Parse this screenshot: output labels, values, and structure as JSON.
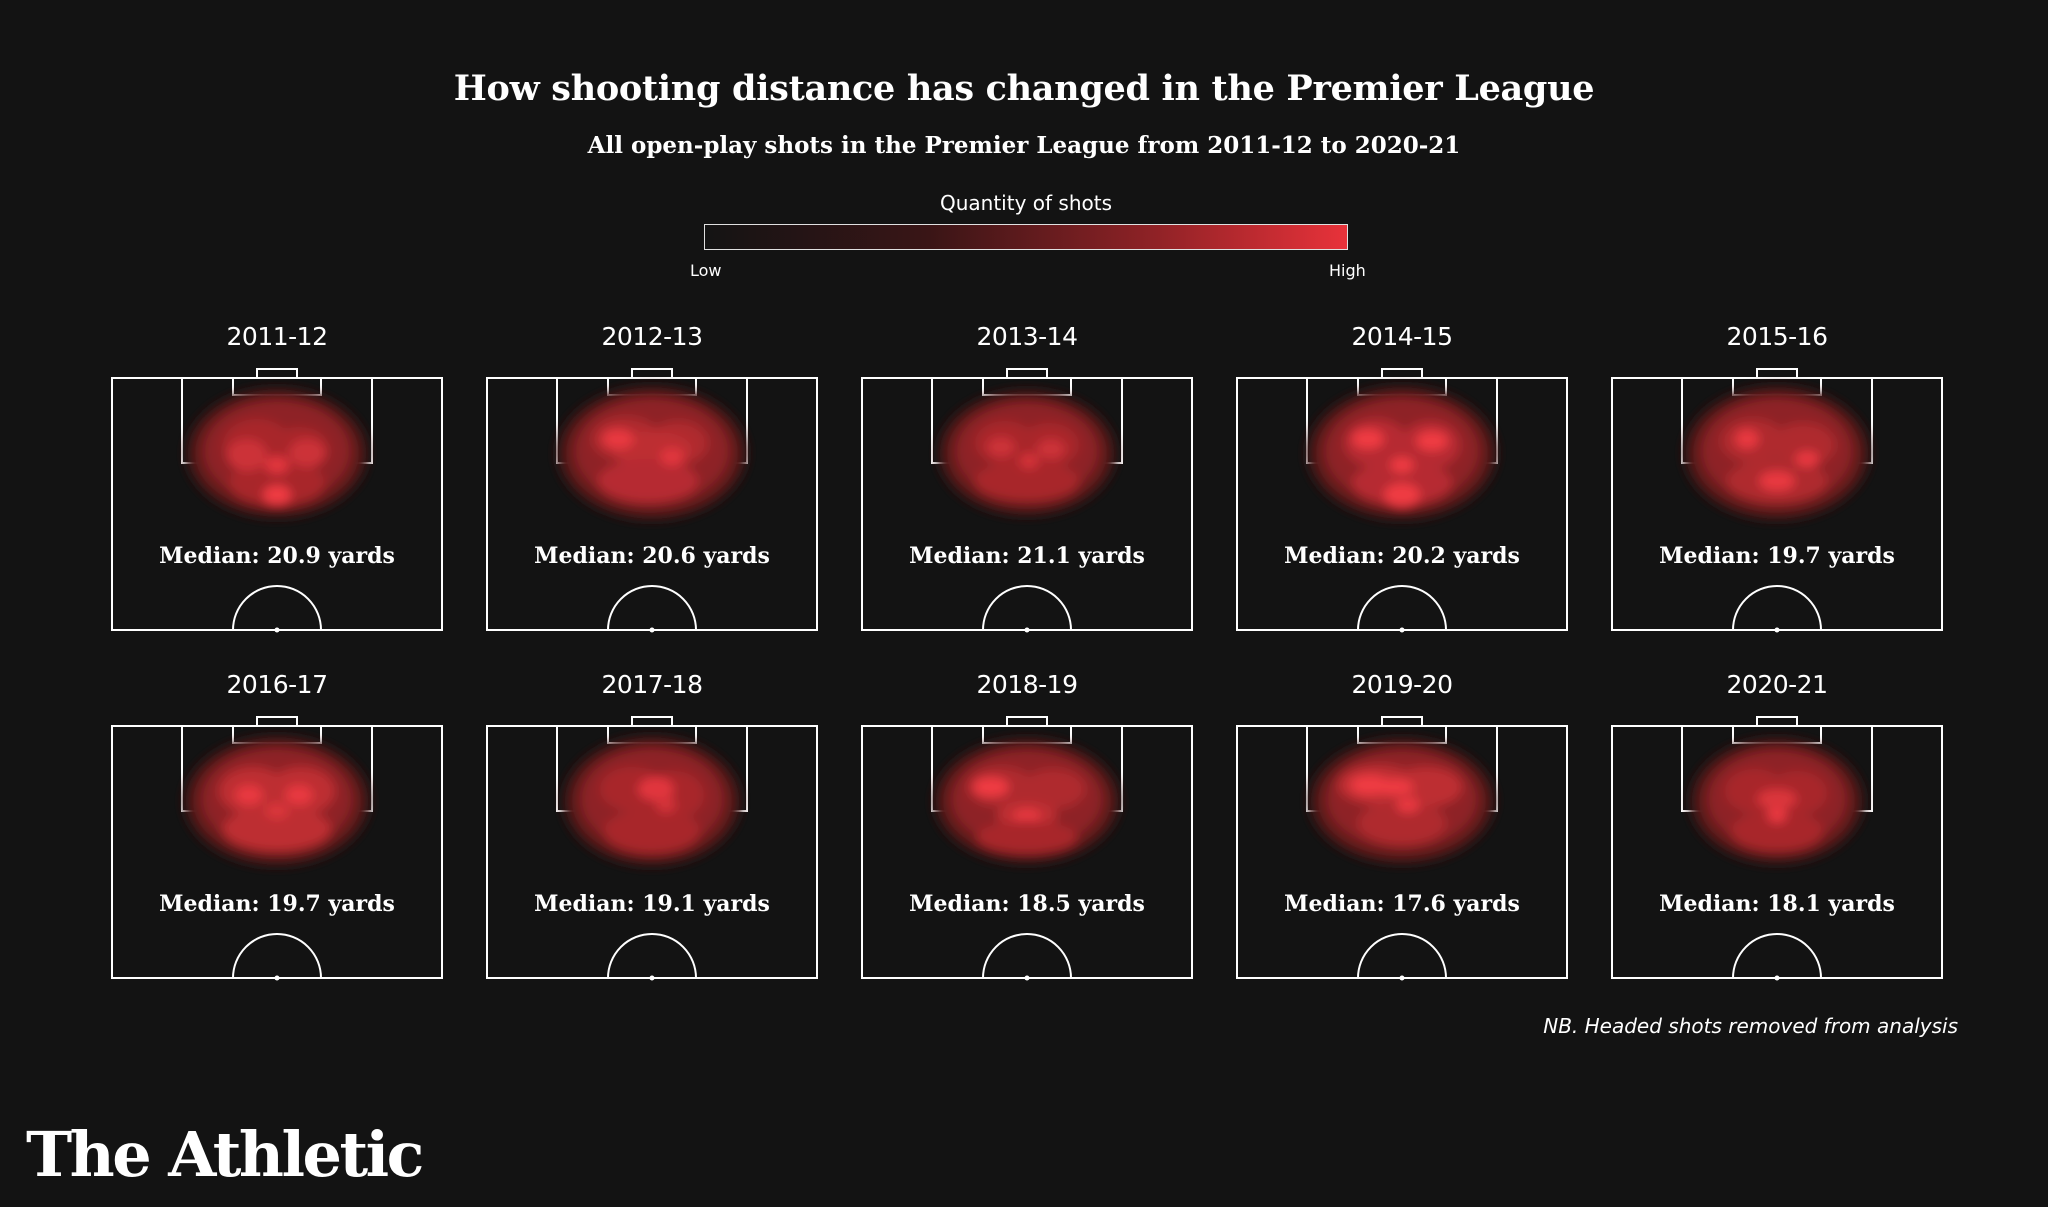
{
  "title": "How shooting distance has changed in the Premier League",
  "subtitle": "All open-play shots in the Premier League from 2011-12 to 2020-21",
  "legend": {
    "title": "Quantity of shots",
    "low_label": "Low",
    "high_label": "High",
    "color_low": "#141414",
    "color_high": "#e8323a"
  },
  "footnote": "NB. Headed shots removed from analysis",
  "brand": "The Athletic",
  "chart_data": {
    "type": "heatmap",
    "title": "How shooting distance has changed in the Premier League",
    "subtitle": "All open-play shots in the Premier League from 2011-12 to 2020-21",
    "legend_title": "Quantity of shots",
    "unit": "yards",
    "panels": [
      {
        "season": "2011-12",
        "median_label": "Median: 20.9 yards",
        "median_yards": 20.9
      },
      {
        "season": "2012-13",
        "median_label": "Median: 20.6 yards",
        "median_yards": 20.6
      },
      {
        "season": "2013-14",
        "median_label": "Median: 21.1 yards",
        "median_yards": 21.1
      },
      {
        "season": "2014-15",
        "median_label": "Median: 20.2 yards",
        "median_yards": 20.2
      },
      {
        "season": "2015-16",
        "median_label": "Median: 19.7 yards",
        "median_yards": 19.7
      },
      {
        "season": "2016-17",
        "median_label": "Median: 19.7 yards",
        "median_yards": 19.7
      },
      {
        "season": "2017-18",
        "median_label": "Median: 19.1 yards",
        "median_yards": 19.1
      },
      {
        "season": "2018-19",
        "median_label": "Median: 18.5 yards",
        "median_yards": 18.5
      },
      {
        "season": "2019-20",
        "median_label": "Median: 17.6 yards",
        "median_yards": 17.6
      },
      {
        "season": "2020-21",
        "median_label": "Median: 18.1 yards",
        "median_yards": 18.1
      }
    ]
  }
}
